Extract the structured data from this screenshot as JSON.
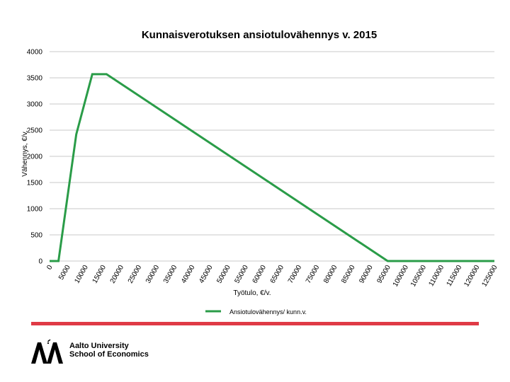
{
  "chart_data": {
    "type": "line",
    "title": "Kunnaisverotuksen ansiotulovähennys v. 2015",
    "xlabel": "Työtulo, €/v.",
    "ylabel": "Vähennys, €/v.",
    "x_ticks": [
      "0",
      "5000",
      "10000",
      "15000",
      "20000",
      "25000",
      "30000",
      "35000",
      "40000",
      "45000",
      "50000",
      "55000",
      "60000",
      "65000",
      "70000",
      "75000",
      "80000",
      "85000",
      "90000",
      "95000",
      "100000",
      "105000",
      "110000",
      "115000",
      "120000",
      "125000"
    ],
    "y_ticks": [
      "0",
      "500",
      "1000",
      "1500",
      "2000",
      "2500",
      "3000",
      "3500",
      "4000"
    ],
    "xlim": [
      0,
      125000
    ],
    "ylim": [
      0,
      4000
    ],
    "grid": "horizontal",
    "legend_position": "bottom",
    "series": [
      {
        "name": "Ansiotulovähennys/ kunn.v.",
        "color": "#2a9c48",
        "x": [
          0,
          2500,
          7500,
          12000,
          16000,
          95000,
          125000
        ],
        "y": [
          0,
          0,
          2420,
          3570,
          3570,
          0,
          0
        ]
      }
    ]
  },
  "branding": {
    "line1": "Aalto University",
    "line2": "School of Economics",
    "accent_color": "#e03a45"
  }
}
